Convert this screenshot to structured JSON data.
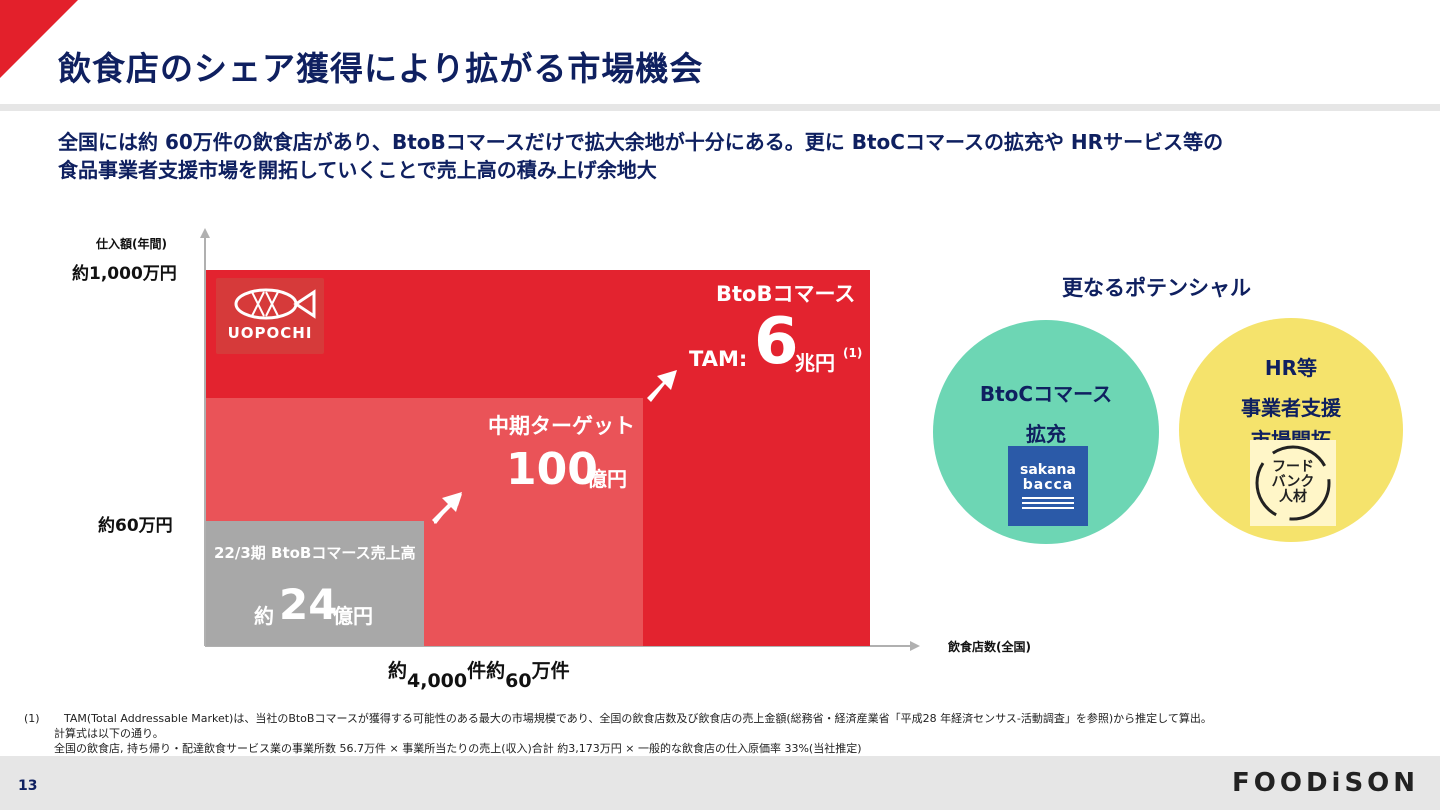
{
  "title": "飲食店のシェア獲得により拡がる市場機会",
  "lead": {
    "line1": "全国には約 60万件の飲食店があり、BtoBコマースだけで拡大余地が十分にある。更に  BtoCコマースの拡充や HRサービス等の",
    "line2": "食品事業者支援市場を開拓していくことで売上高の積み上げ余地大"
  },
  "chart": {
    "y_axis_title": "仕入額(年間)",
    "y_labels": {
      "top": "約1,000万円",
      "mid": "約60万円"
    },
    "x_axis_title": "飲食店数(全国)",
    "x_labels": {
      "first_prefix": "約",
      "first_value": "4,000",
      "first_unit": "件",
      "second_prefix": "約",
      "second_value": "60",
      "second_unit": "万件"
    },
    "logo_text": "UOPOCHI",
    "big_block": {
      "label": "BtoBコマース",
      "tam_prefix": "TAM:",
      "value": "6",
      "unit": "兆円",
      "note": "(1)"
    },
    "mid_block": {
      "label": "中期ターゲット",
      "value": "100",
      "unit": "億円"
    },
    "small_block": {
      "label": "22/3期 BtoBコマース売上高",
      "prefix": "約",
      "value": "24",
      "unit": "億円"
    },
    "colors": {
      "tam": "#e3232f",
      "mid": "#ea5358",
      "current": "#a8a8a8"
    }
  },
  "chart_data": {
    "type": "diagram",
    "title": "飲食店のシェア獲得により拡がる市場機会",
    "xlabel": "飲食店数(全国)",
    "ylabel": "仕入額(年間)",
    "blocks": [
      {
        "name": "22/3期 BtoBコマース売上高",
        "value": "約24億円"
      },
      {
        "name": "中期ターゲット",
        "value": "100億円"
      },
      {
        "name": "BtoBコマース TAM",
        "value": "6兆円"
      }
    ]
  },
  "potential": {
    "heading": "更なるポテンシャル",
    "btoc": {
      "line1": "BtoCコマース",
      "line2": "拡充",
      "logo_line1": "sakana",
      "logo_line2": "bacca"
    },
    "hr": {
      "line1": "HR等",
      "line2": "事業者支援",
      "line3": "市場開拓",
      "logo_text": "フードバンク人材"
    }
  },
  "footnote": {
    "marker": "(1)",
    "line1": "TAM(Total Addressable Market)は、当社のBtoBコマースが獲得する可能性のある最大の市場規模であり、全国の飲食店数及び飲食店の売上金額(総務省・経済産業省「平成28 年経済センサス-活動調査」を参照)から推定して算出。",
    "line2": "計算式は以下の通り。",
    "line3": "全国の飲食店, 持ち帰り・配達飲食サービス業の事業所数 56.7万件 × 事業所当たりの売上(収入)合計 約3,173万円 × 一般的な飲食店の仕入原価率 33%(当社推定)"
  },
  "footer": {
    "page": "13",
    "brand": "FOODiSON"
  }
}
